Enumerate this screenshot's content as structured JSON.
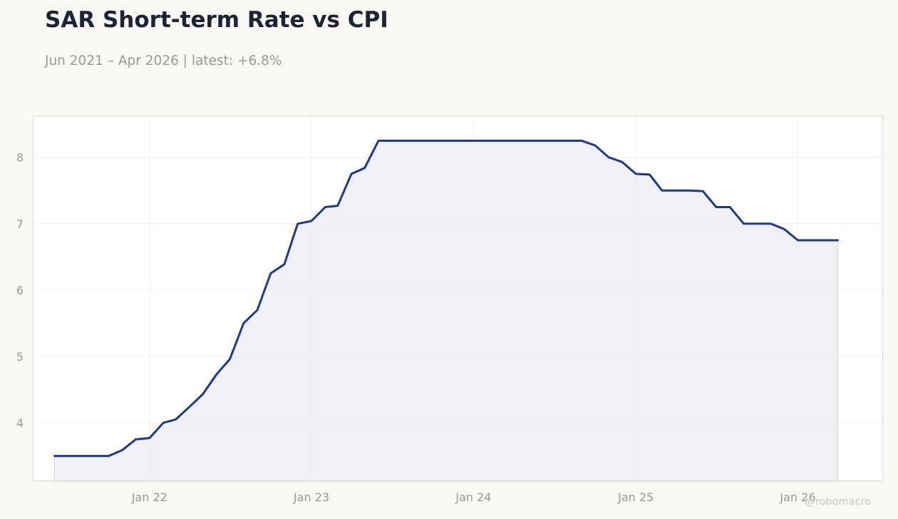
{
  "title": "SAR Short-term Rate vs CPI",
  "subtitle": "Jun 2021 – Apr 2026 | latest: +6.8%",
  "watermark": "@robomacro",
  "colors": {
    "line": "#1f3a8a",
    "fill": "#eeeef4",
    "grid": "#eeeeee",
    "tick_text": "#9b9893",
    "plot_bg": "#ffffff",
    "page_bg": "#f9f8f5"
  },
  "chart_data": {
    "type": "area",
    "title": "SAR Short-term Rate vs CPI",
    "xlabel": "",
    "ylabel": "",
    "grid": true,
    "x_ticks": [
      {
        "label": "Jan 22",
        "date": "2022-01"
      },
      {
        "label": "Jan 23",
        "date": "2023-01"
      },
      {
        "label": "Jan 24",
        "date": "2024-01"
      },
      {
        "label": "Jan 25",
        "date": "2025-01"
      },
      {
        "label": "Jan 26",
        "date": "2026-01"
      }
    ],
    "y_ticks": [
      4,
      5,
      6,
      7,
      8
    ],
    "xlim": [
      "2021-04-13",
      "2026-07-12"
    ],
    "ylim": [
      3.12,
      8.63
    ],
    "series": [
      {
        "x": [
          "2021-06",
          "2021-07",
          "2021-08",
          "2021-09",
          "2021-10",
          "2021-11",
          "2021-12",
          "2022-01",
          "2022-02",
          "2022-03",
          "2022-04",
          "2022-05",
          "2022-06",
          "2022-07",
          "2022-08",
          "2022-09",
          "2022-10",
          "2022-11",
          "2022-12",
          "2023-01",
          "2023-02",
          "2023-03",
          "2023-04",
          "2023-05",
          "2023-06",
          "2023-07",
          "2023-08",
          "2023-09",
          "2023-10",
          "2023-11",
          "2023-12",
          "2024-01",
          "2024-02",
          "2024-03",
          "2024-04",
          "2024-05",
          "2024-06",
          "2024-07",
          "2024-08",
          "2024-09",
          "2024-10",
          "2024-11",
          "2024-12",
          "2025-01",
          "2025-02",
          "2025-03",
          "2025-04",
          "2025-05",
          "2025-06",
          "2025-07",
          "2025-08",
          "2025-09",
          "2025-10",
          "2025-11",
          "2025-12",
          "2026-01",
          "2026-02",
          "2026-03",
          "2026-04"
        ],
        "values": [
          3.5,
          3.5,
          3.5,
          3.5,
          3.5,
          3.59,
          3.75,
          3.77,
          4.0,
          4.05,
          4.24,
          4.43,
          4.73,
          4.96,
          5.5,
          5.7,
          6.25,
          6.39,
          7.0,
          7.04,
          7.25,
          7.27,
          7.75,
          7.84,
          8.25,
          8.25,
          8.25,
          8.25,
          8.25,
          8.25,
          8.25,
          8.25,
          8.25,
          8.25,
          8.25,
          8.25,
          8.25,
          8.25,
          8.25,
          8.25,
          8.18,
          8.0,
          7.93,
          7.75,
          7.74,
          7.5,
          7.5,
          7.5,
          7.49,
          7.25,
          7.25,
          7.0,
          7.0,
          7.0,
          6.92,
          6.75,
          6.75,
          6.75,
          6.75
        ]
      }
    ]
  }
}
